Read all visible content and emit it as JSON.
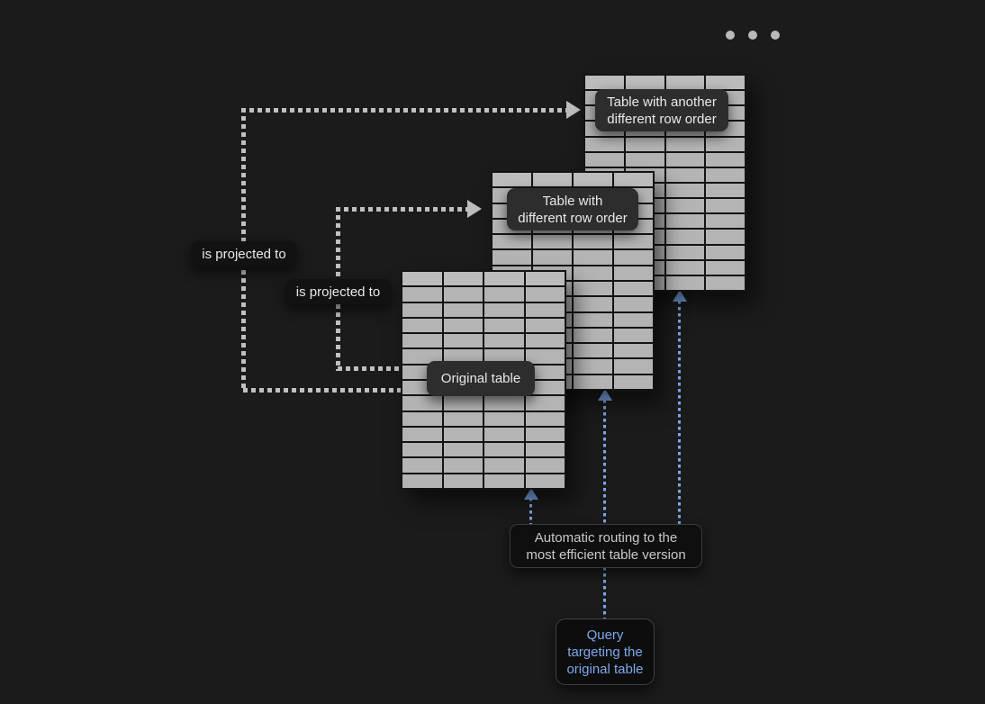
{
  "window": {
    "menu_icon": "ellipsis-dots-icon"
  },
  "diagram": {
    "tables": {
      "original": {
        "label": "Original table",
        "columns": 4,
        "rows": 14
      },
      "reordered": {
        "label_line1": "Table with",
        "label_line2": "different row order",
        "columns": 4,
        "rows": 14
      },
      "reordered_other": {
        "label_line1": "Table with another",
        "label_line2": "different row order",
        "columns": 4,
        "rows": 14
      }
    },
    "projections": {
      "to_other_label": "is projected to",
      "to_reordered_label": "is projected to"
    },
    "routing": {
      "line1": "Automatic routing to the",
      "line2": "most efficient table version"
    },
    "query": {
      "line1": "Query",
      "line2": "targeting the",
      "line3": "original table"
    },
    "colors": {
      "background": "#1b1b1b",
      "table_fill": "#b4b4b4",
      "grid_line": "#141414",
      "gray_connector": "#c0c0c0",
      "blue_connector": "#7da8ea",
      "query_text": "#7da8ea",
      "label_text": "#e9e9e9"
    }
  }
}
